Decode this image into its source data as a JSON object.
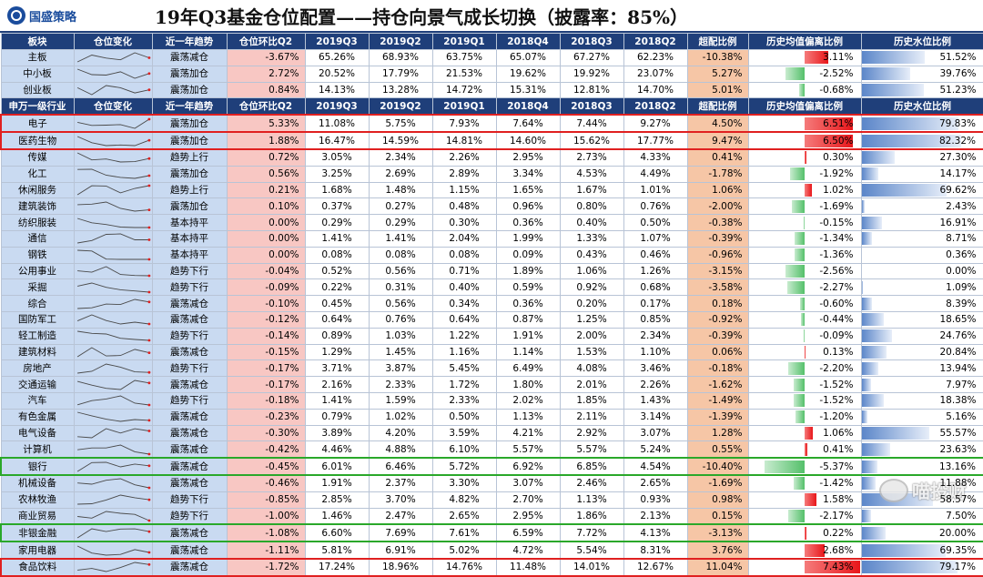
{
  "header": {
    "logo_text": "国盛策略",
    "title": "19年Q3基金仓位配置——持仓向景气成长切换（披露率：85%）"
  },
  "columns": [
    "板块",
    "仓位变化",
    "近一年趋势",
    "仓位环比Q2",
    "2019Q3",
    "2019Q2",
    "2019Q1",
    "2018Q4",
    "2018Q3",
    "2018Q2",
    "超配比例",
    "历史均值偏离比例",
    "历史水位比例"
  ],
  "columns2": [
    "申万一级行业",
    "仓位变化",
    "近一年趋势",
    "仓位环比Q2",
    "2019Q3",
    "2019Q2",
    "2019Q1",
    "2018Q4",
    "2018Q3",
    "2018Q2",
    "超配比例",
    "历史均值偏离比例",
    "历史水位比例"
  ],
  "board_rows": [
    {
      "name": "主板",
      "trend": "震荡减仓",
      "chg": "-3.67%",
      "q": [
        "65.26%",
        "68.93%",
        "63.75%",
        "65.07%",
        "67.27%",
        "62.23%"
      ],
      "excess": "-10.38%",
      "dev": "3.11%",
      "lvl": "51.52%"
    },
    {
      "name": "中小板",
      "trend": "震荡加仓",
      "chg": "2.72%",
      "q": [
        "20.52%",
        "17.79%",
        "21.53%",
        "19.62%",
        "19.92%",
        "23.07%"
      ],
      "excess": "5.27%",
      "dev": "-2.52%",
      "lvl": "39.76%"
    },
    {
      "name": "创业板",
      "trend": "震荡加仓",
      "chg": "0.84%",
      "q": [
        "14.13%",
        "13.28%",
        "14.72%",
        "15.31%",
        "12.81%",
        "14.70%"
      ],
      "excess": "5.01%",
      "dev": "-0.68%",
      "lvl": "51.23%"
    }
  ],
  "industry_rows": [
    {
      "name": "电子",
      "trend": "震荡加仓",
      "chg": "5.33%",
      "q": [
        "11.08%",
        "5.75%",
        "7.93%",
        "7.64%",
        "7.44%",
        "9.27%"
      ],
      "excess": "4.50%",
      "dev": "6.51%",
      "lvl": "79.83%",
      "hl": "red"
    },
    {
      "name": "医药生物",
      "trend": "震荡加仓",
      "chg": "1.88%",
      "q": [
        "16.47%",
        "14.59%",
        "14.81%",
        "14.60%",
        "15.62%",
        "17.77%"
      ],
      "excess": "9.47%",
      "dev": "6.50%",
      "lvl": "82.32%",
      "hl": "red"
    },
    {
      "name": "传媒",
      "trend": "趋势上行",
      "chg": "0.72%",
      "q": [
        "3.05%",
        "2.34%",
        "2.26%",
        "2.95%",
        "2.73%",
        "4.33%"
      ],
      "excess": "0.41%",
      "dev": "0.30%",
      "lvl": "27.30%"
    },
    {
      "name": "化工",
      "trend": "震荡加仓",
      "chg": "0.56%",
      "q": [
        "3.25%",
        "2.69%",
        "2.89%",
        "3.34%",
        "4.53%",
        "4.49%"
      ],
      "excess": "-1.78%",
      "dev": "-1.92%",
      "lvl": "14.17%"
    },
    {
      "name": "休闲服务",
      "trend": "趋势上行",
      "chg": "0.21%",
      "q": [
        "1.68%",
        "1.48%",
        "1.15%",
        "1.65%",
        "1.67%",
        "1.01%"
      ],
      "excess": "1.06%",
      "dev": "1.02%",
      "lvl": "69.62%"
    },
    {
      "name": "建筑装饰",
      "trend": "震荡加仓",
      "chg": "0.10%",
      "q": [
        "0.37%",
        "0.27%",
        "0.48%",
        "0.96%",
        "0.80%",
        "0.76%"
      ],
      "excess": "-2.00%",
      "dev": "-1.69%",
      "lvl": "2.43%"
    },
    {
      "name": "纺织服装",
      "trend": "基本持平",
      "chg": "0.00%",
      "q": [
        "0.29%",
        "0.29%",
        "0.30%",
        "0.36%",
        "0.40%",
        "0.50%"
      ],
      "excess": "-0.38%",
      "dev": "-0.15%",
      "lvl": "16.91%"
    },
    {
      "name": "通信",
      "trend": "基本持平",
      "chg": "0.00%",
      "q": [
        "1.41%",
        "1.41%",
        "2.04%",
        "1.99%",
        "1.33%",
        "1.07%"
      ],
      "excess": "-0.39%",
      "dev": "-1.34%",
      "lvl": "8.71%"
    },
    {
      "name": "钢铁",
      "trend": "基本持平",
      "chg": "0.00%",
      "q": [
        "0.08%",
        "0.08%",
        "0.08%",
        "0.09%",
        "0.43%",
        "0.46%"
      ],
      "excess": "-0.96%",
      "dev": "-1.36%",
      "lvl": "0.36%"
    },
    {
      "name": "公用事业",
      "trend": "趋势下行",
      "chg": "-0.04%",
      "q": [
        "0.52%",
        "0.56%",
        "0.71%",
        "1.89%",
        "1.06%",
        "1.26%"
      ],
      "excess": "-3.15%",
      "dev": "-2.56%",
      "lvl": "0.00%"
    },
    {
      "name": "采掘",
      "trend": "趋势下行",
      "chg": "-0.09%",
      "q": [
        "0.22%",
        "0.31%",
        "0.40%",
        "0.59%",
        "0.92%",
        "0.68%"
      ],
      "excess": "-3.58%",
      "dev": "-2.27%",
      "lvl": "1.09%"
    },
    {
      "name": "综合",
      "trend": "震荡减仓",
      "chg": "-0.10%",
      "q": [
        "0.45%",
        "0.56%",
        "0.34%",
        "0.36%",
        "0.20%",
        "0.17%"
      ],
      "excess": "0.18%",
      "dev": "-0.60%",
      "lvl": "8.39%"
    },
    {
      "name": "国防军工",
      "trend": "震荡减仓",
      "chg": "-0.12%",
      "q": [
        "0.64%",
        "0.76%",
        "0.64%",
        "0.87%",
        "1.25%",
        "0.85%"
      ],
      "excess": "-0.92%",
      "dev": "-0.44%",
      "lvl": "18.65%"
    },
    {
      "name": "轻工制造",
      "trend": "趋势下行",
      "chg": "-0.14%",
      "q": [
        "0.89%",
        "1.03%",
        "1.22%",
        "1.91%",
        "2.00%",
        "2.34%"
      ],
      "excess": "-0.39%",
      "dev": "-0.09%",
      "lvl": "24.76%"
    },
    {
      "name": "建筑材料",
      "trend": "震荡减仓",
      "chg": "-0.15%",
      "q": [
        "1.29%",
        "1.45%",
        "1.16%",
        "1.14%",
        "1.53%",
        "1.10%"
      ],
      "excess": "0.06%",
      "dev": "0.13%",
      "lvl": "20.84%"
    },
    {
      "name": "房地产",
      "trend": "趋势下行",
      "chg": "-0.17%",
      "q": [
        "3.71%",
        "3.87%",
        "5.45%",
        "6.49%",
        "4.08%",
        "3.46%"
      ],
      "excess": "-0.18%",
      "dev": "-2.20%",
      "lvl": "13.94%"
    },
    {
      "name": "交通运输",
      "trend": "震荡减仓",
      "chg": "-0.17%",
      "q": [
        "2.16%",
        "2.33%",
        "1.72%",
        "1.80%",
        "2.01%",
        "2.26%"
      ],
      "excess": "-1.62%",
      "dev": "-1.52%",
      "lvl": "7.97%"
    },
    {
      "name": "汽车",
      "trend": "趋势下行",
      "chg": "-0.18%",
      "q": [
        "1.41%",
        "1.59%",
        "2.33%",
        "2.02%",
        "1.85%",
        "1.43%"
      ],
      "excess": "-1.49%",
      "dev": "-1.52%",
      "lvl": "18.38%"
    },
    {
      "name": "有色金属",
      "trend": "震荡减仓",
      "chg": "-0.23%",
      "q": [
        "0.79%",
        "1.02%",
        "0.50%",
        "1.13%",
        "2.11%",
        "3.14%"
      ],
      "excess": "-1.39%",
      "dev": "-1.20%",
      "lvl": "5.16%"
    },
    {
      "name": "电气设备",
      "trend": "震荡减仓",
      "chg": "-0.30%",
      "q": [
        "3.89%",
        "4.20%",
        "3.59%",
        "4.21%",
        "2.92%",
        "3.07%"
      ],
      "excess": "1.28%",
      "dev": "1.06%",
      "lvl": "55.57%"
    },
    {
      "name": "计算机",
      "trend": "震荡减仓",
      "chg": "-0.42%",
      "q": [
        "4.46%",
        "4.88%",
        "6.10%",
        "5.57%",
        "5.57%",
        "5.24%"
      ],
      "excess": "0.55%",
      "dev": "0.41%",
      "lvl": "23.63%"
    },
    {
      "name": "银行",
      "trend": "震荡减仓",
      "chg": "-0.45%",
      "q": [
        "6.01%",
        "6.46%",
        "5.72%",
        "6.92%",
        "6.85%",
        "4.54%"
      ],
      "excess": "-10.40%",
      "dev": "-5.37%",
      "lvl": "13.16%",
      "hl": "green"
    },
    {
      "name": "机械设备",
      "trend": "震荡减仓",
      "chg": "-0.46%",
      "q": [
        "1.91%",
        "2.37%",
        "3.30%",
        "3.07%",
        "2.46%",
        "2.65%"
      ],
      "excess": "-1.69%",
      "dev": "-1.42%",
      "lvl": "11.88%"
    },
    {
      "name": "农林牧渔",
      "trend": "趋势下行",
      "chg": "-0.85%",
      "q": [
        "2.85%",
        "3.70%",
        "4.82%",
        "2.70%",
        "1.13%",
        "0.93%"
      ],
      "excess": "0.98%",
      "dev": "1.58%",
      "lvl": "58.57%"
    },
    {
      "name": "商业贸易",
      "trend": "趋势下行",
      "chg": "-1.00%",
      "q": [
        "1.46%",
        "2.47%",
        "2.65%",
        "2.95%",
        "1.86%",
        "2.13%"
      ],
      "excess": "0.15%",
      "dev": "-2.17%",
      "lvl": "7.50%"
    },
    {
      "name": "非银金融",
      "trend": "震荡减仓",
      "chg": "-1.08%",
      "q": [
        "6.60%",
        "7.69%",
        "7.61%",
        "6.59%",
        "7.72%",
        "4.13%"
      ],
      "excess": "-3.13%",
      "dev": "0.22%",
      "lvl": "20.00%",
      "hl": "green"
    },
    {
      "name": "家用电器",
      "trend": "震荡减仓",
      "chg": "-1.11%",
      "q": [
        "5.81%",
        "6.91%",
        "5.02%",
        "4.72%",
        "5.54%",
        "8.31%"
      ],
      "excess": "3.76%",
      "dev": "2.68%",
      "lvl": "69.35%"
    },
    {
      "name": "食品饮料",
      "trend": "震荡减仓",
      "chg": "-1.72%",
      "q": [
        "17.24%",
        "18.96%",
        "14.76%",
        "11.48%",
        "14.01%",
        "12.67%"
      ],
      "excess": "11.04%",
      "dev": "7.43%",
      "lvl": "79.17%",
      "hl": "red"
    }
  ],
  "watermark": {
    "text": "喵投财",
    "icon": "wechat-icon"
  },
  "colors": {
    "header": "#1f3f7a",
    "name_bg": "#c9daf1",
    "chg_bg": "#f8c7c3",
    "excess_bg": "#f6c6a6",
    "dev_pos": "#e8161a",
    "dev_neg": "#54c06a",
    "lvl_bar": "#5b86c9",
    "hl_red": "#e02020",
    "hl_green": "#2aa82a"
  }
}
